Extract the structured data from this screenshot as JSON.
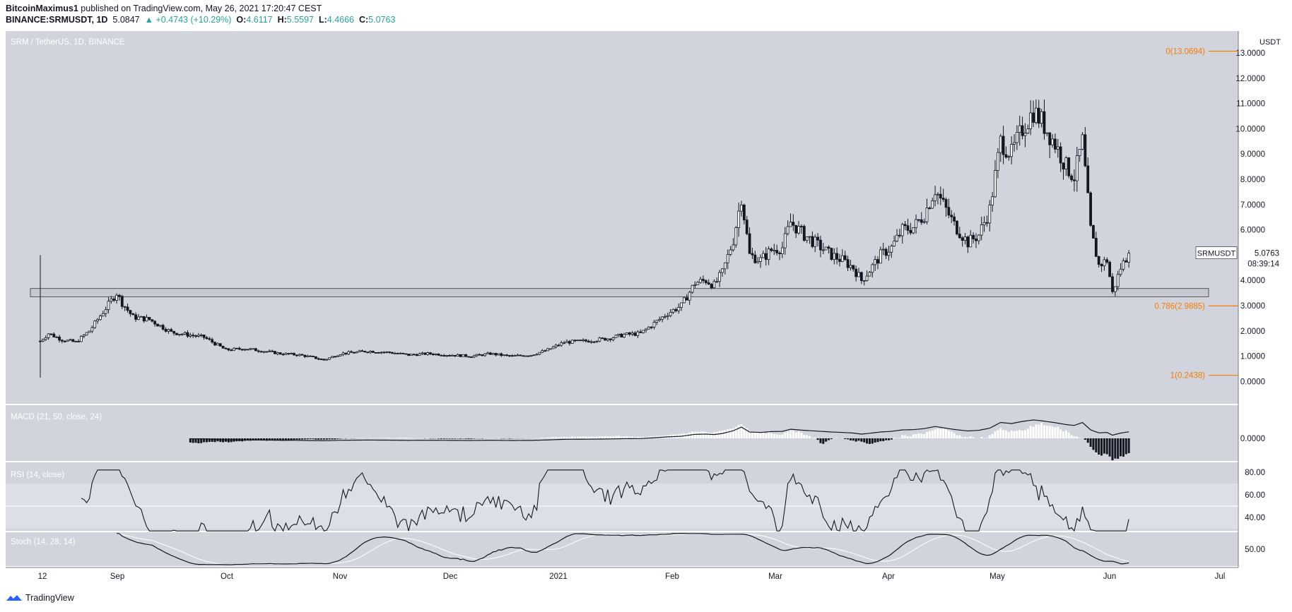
{
  "header": {
    "author": "BitcoinMaximus1",
    "published": "published on TradingView.com, May 26, 2021 17:20:47 CEST",
    "symbol": "BINANCE:SRMUSDT, 1D",
    "last": "5.0847",
    "change": "▲ +0.4743 (+10.29%)",
    "o_label": "O:",
    "o_val": "4.6117",
    "h_label": "H:",
    "h_val": "5.5597",
    "l_label": "L:",
    "l_val": "4.4666",
    "c_label": "C:",
    "c_val": "5.0763"
  },
  "footer": {
    "brand": "TradingView"
  },
  "colors": {
    "pane_bg": "#d1d4dc",
    "candle": "#131722",
    "fib": "#f57c00",
    "bull_body": "#ffffff"
  },
  "chart_data": {
    "type": "candlestick",
    "title": "SRM / TetherUS, 1D, BINANCE",
    "currency": "USDT",
    "ylim": [
      -0.9,
      13.9
    ],
    "yticks": [
      "13.0000",
      "12.0000",
      "11.0000",
      "10.0000",
      "9.0000",
      "8.0000",
      "7.0000",
      "6.0000",
      "5.0000",
      "4.0000",
      "3.0000",
      "2.0000",
      "1.0000",
      "0.0000"
    ],
    "ytick_values": [
      13,
      12,
      11,
      10,
      9,
      8,
      7,
      6,
      5,
      4,
      3,
      2,
      1,
      0
    ],
    "xticks": [
      "12",
      "Sep",
      "Oct",
      "Nov",
      "Dec",
      "2021",
      "Feb",
      "Mar",
      "Apr",
      "May",
      "Jun",
      "Jul"
    ],
    "support_zone": [
      3.35,
      3.68
    ],
    "fib_levels": [
      {
        "label": "0(13.0694)",
        "value": 13.0694
      },
      {
        "label": "0.786(2.9885)",
        "value": 2.9885
      },
      {
        "label": "1(0.2438)",
        "value": 0.2438
      }
    ],
    "price_label": {
      "symbol": "SRMUSDT",
      "price": "5.0763",
      "countdown": "08:39:14",
      "value": 5.0763
    },
    "anchors": [
      [
        0,
        1.6
      ],
      [
        3,
        1.9
      ],
      [
        8,
        1.65
      ],
      [
        13,
        1.55
      ],
      [
        18,
        2.0
      ],
      [
        22,
        2.6
      ],
      [
        26,
        3.2
      ],
      [
        28,
        3.5
      ],
      [
        30,
        3.1
      ],
      [
        34,
        2.55
      ],
      [
        40,
        2.45
      ],
      [
        44,
        2.2
      ],
      [
        48,
        1.95
      ],
      [
        54,
        1.85
      ],
      [
        60,
        1.75
      ],
      [
        64,
        1.5
      ],
      [
        68,
        1.25
      ],
      [
        75,
        1.3
      ],
      [
        82,
        1.2
      ],
      [
        88,
        1.1
      ],
      [
        95,
        1.05
      ],
      [
        100,
        0.95
      ],
      [
        104,
        0.85
      ],
      [
        110,
        1.1
      ],
      [
        120,
        1.2
      ],
      [
        128,
        1.15
      ],
      [
        135,
        1.05
      ],
      [
        142,
        1.1
      ],
      [
        150,
        1.05
      ],
      [
        158,
        1.0
      ],
      [
        165,
        1.1
      ],
      [
        172,
        1.0
      ],
      [
        180,
        1.05
      ],
      [
        186,
        1.25
      ],
      [
        192,
        1.55
      ],
      [
        200,
        1.6
      ],
      [
        208,
        1.7
      ],
      [
        214,
        1.85
      ],
      [
        220,
        1.9
      ],
      [
        225,
        2.3
      ],
      [
        230,
        2.7
      ],
      [
        235,
        3.0
      ],
      [
        240,
        3.9
      ],
      [
        244,
        4.0
      ],
      [
        247,
        3.8
      ],
      [
        250,
        4.3
      ],
      [
        254,
        5.6
      ],
      [
        257,
        7.3
      ],
      [
        260,
        5.0
      ],
      [
        264,
        4.8
      ],
      [
        268,
        5.2
      ],
      [
        272,
        5.3
      ],
      [
        275,
        6.3
      ],
      [
        280,
        5.8
      ],
      [
        285,
        5.4
      ],
      [
        290,
        5.0
      ],
      [
        294,
        4.8
      ],
      [
        298,
        4.5
      ],
      [
        301,
        4.0
      ],
      [
        304,
        4.4
      ],
      [
        308,
        5.0
      ],
      [
        312,
        5.3
      ],
      [
        316,
        6.0
      ],
      [
        320,
        6.1
      ],
      [
        324,
        6.6
      ],
      [
        328,
        7.6
      ],
      [
        331,
        7.0
      ],
      [
        335,
        6.2
      ],
      [
        340,
        5.5
      ],
      [
        344,
        5.8
      ],
      [
        348,
        6.8
      ],
      [
        352,
        9.5
      ],
      [
        356,
        9.0
      ],
      [
        360,
        10.0
      ],
      [
        364,
        10.7
      ],
      [
        367,
        10.3
      ],
      [
        372,
        9.4
      ],
      [
        376,
        8.5
      ],
      [
        379,
        8.1
      ],
      [
        382,
        9.5
      ],
      [
        385,
        6.0
      ],
      [
        388,
        4.6
      ],
      [
        391,
        4.8
      ],
      [
        393,
        3.5
      ],
      [
        396,
        4.5
      ],
      [
        399,
        5.08
      ]
    ],
    "macd": {
      "title": "MACD (21, 50, close, 24)",
      "ytick": "0.0000",
      "ytick_value": 0
    },
    "rsi": {
      "title": "RSI (14, close)",
      "yticks": [
        "80.00",
        "60.00",
        "40.00"
      ],
      "ytick_values": [
        80,
        60,
        40
      ],
      "band": [
        30,
        70
      ],
      "mid": 50
    },
    "stoch": {
      "title": "Stoch (14, 28, 14)",
      "ytick": "50.00",
      "ytick_value": 50
    }
  }
}
